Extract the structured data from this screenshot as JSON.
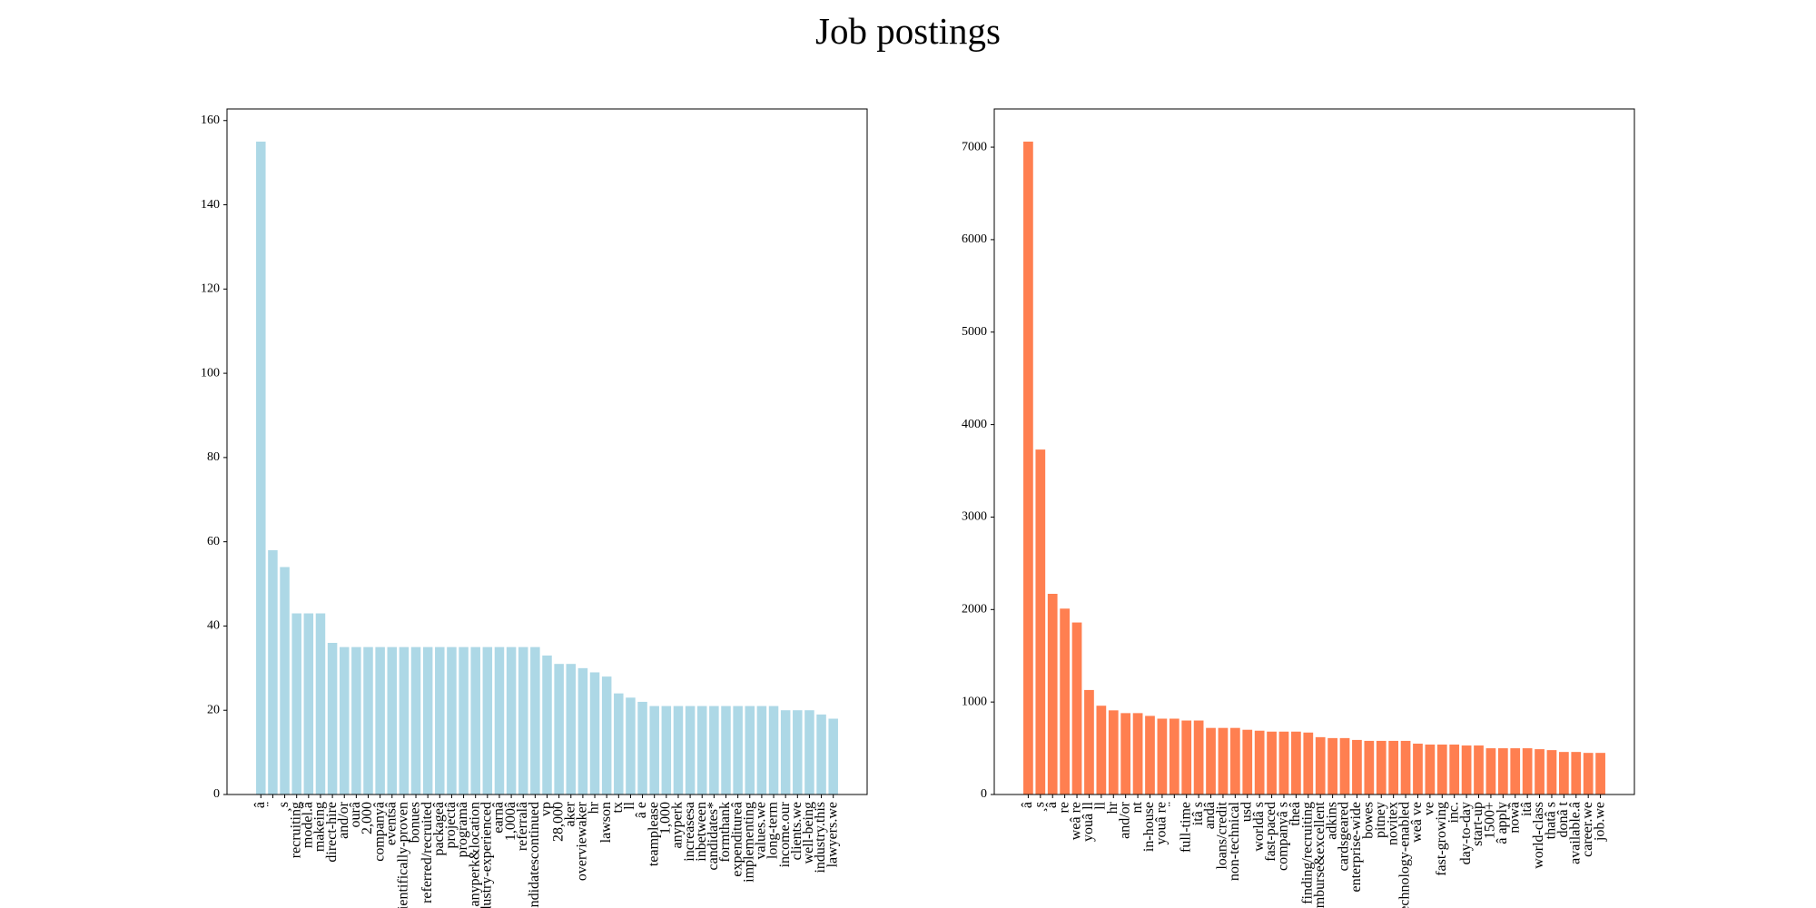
{
  "title": "Job postings",
  "chart_data": [
    {
      "type": "bar",
      "color": "#add8e6",
      "categories": [
        "â",
        "¨",
        "¸s",
        "recruiting",
        "model.â",
        "makeing",
        "direct-hire",
        "and/or",
        "ourâ",
        "2,000",
        "companyâ",
        "eventsâ",
        "scientifically-proven",
        "bonues",
        "referred/recruited",
        "packageâ",
        "projectâ",
        "programâ",
        "anyperk&location",
        "industry-experienced",
        "earnâ",
        "1,000â",
        "referralâ",
        "candidatescontinued",
        "vp",
        "28,000",
        "aker",
        "overviewaker",
        "hr",
        "lawson",
        "tx",
        "ll",
        "â e",
        "teamplease",
        "1,000",
        "anyperk",
        "increasesa",
        "inbetween",
        "candidates*",
        "formthank",
        "expenditureâ",
        "implementing",
        "values.we",
        "long-term",
        "income.our",
        "clients.we",
        "well-being",
        "industry.this",
        "lawyers.we"
      ],
      "values": [
        155,
        58,
        54,
        43,
        43,
        43,
        36,
        35,
        35,
        35,
        35,
        35,
        35,
        35,
        35,
        35,
        35,
        35,
        35,
        35,
        35,
        35,
        35,
        35,
        33,
        31,
        31,
        30,
        29,
        28,
        24,
        23,
        22,
        21,
        21,
        21,
        21,
        21,
        21,
        21,
        21,
        21,
        21,
        21,
        20,
        20,
        20,
        19,
        18
      ],
      "ylim": [
        0,
        162.75
      ],
      "yticks": [
        0,
        20,
        40,
        60,
        80,
        100,
        120,
        140,
        160
      ]
    },
    {
      "type": "bar",
      "color": "#ff7f50",
      "categories": [
        "â",
        "¸s",
        "â",
        "re",
        "weâ re",
        "youâ ll",
        "ll",
        "hr",
        "and/or",
        "nt",
        "in-house",
        "youâ re",
        "¨",
        "full-time",
        "itâ s",
        "andâ",
        "loans/credit",
        "non-technical",
        "usd",
        "worldâ s",
        "fast-paced",
        "companyâ s",
        "theâ",
        "finding/recruiting",
        "reimburse&excellent",
        "adkins",
        "cardsgeared",
        "enterprise-wide",
        "bowes",
        "pitney",
        "novitex",
        "technology-enabled",
        "weâ ve",
        "ve",
        "fast-growing",
        "inc.",
        "day-to-day",
        "start-up",
        "1500+",
        "â apply",
        "nowâ",
        "itâ",
        "world-class",
        "thatâ s",
        "donâ t",
        "available.â",
        "career.we",
        "job.we"
      ],
      "values": [
        7060,
        3730,
        2170,
        2010,
        1860,
        1130,
        960,
        910,
        880,
        880,
        850,
        820,
        820,
        800,
        800,
        720,
        720,
        720,
        700,
        690,
        680,
        680,
        680,
        670,
        620,
        610,
        610,
        590,
        580,
        580,
        580,
        580,
        550,
        540,
        540,
        540,
        530,
        530,
        500,
        500,
        500,
        500,
        490,
        480,
        460,
        460,
        450,
        450
      ],
      "ylim": [
        0,
        7413
      ],
      "yticks": [
        0,
        1000,
        2000,
        3000,
        4000,
        5000,
        6000,
        7000
      ]
    }
  ]
}
